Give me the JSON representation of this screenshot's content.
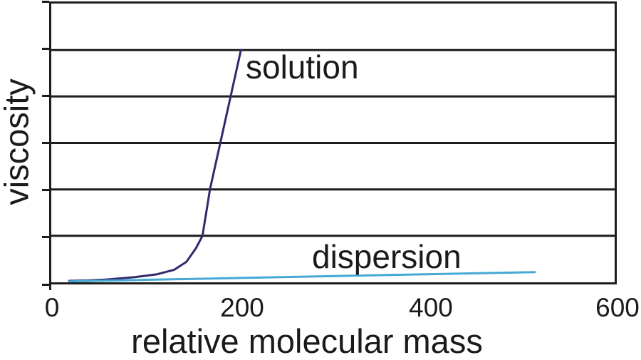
{
  "chart_data": {
    "type": "line",
    "title": "",
    "xlabel": "relative molecular mass",
    "ylabel": "viscosity",
    "xlim": [
      0,
      600
    ],
    "ylim": [
      0,
      6
    ],
    "x_ticks": [
      0,
      200,
      400,
      600
    ],
    "x_tick_labels": [
      "0",
      "200",
      "400",
      "600"
    ],
    "y_ticks_shown_as": "unlabeled gridline ticks",
    "y_gridlines": [
      1,
      2,
      3,
      4,
      5
    ],
    "grid": "horizontal-only",
    "grid_color": "#1d1d1b",
    "frame_color": "#1d1d1b",
    "text_color": "#1a1a1a",
    "background_color": "#ffffff",
    "legend": "inline-labels",
    "series": [
      {
        "name": "solution",
        "color": "#312a6e",
        "x": [
          19,
          40,
          59,
          89,
          112,
          131,
          144,
          154,
          161,
          169,
          180,
          191,
          202
        ],
        "values": [
          0.03,
          0.04,
          0.06,
          0.11,
          0.17,
          0.27,
          0.44,
          0.73,
          1.0,
          2.0,
          3.0,
          4.0,
          5.0
        ]
      },
      {
        "name": "dispersion",
        "color": "#45a8d5",
        "x": [
          19,
          515
        ],
        "values": [
          0.02,
          0.22
        ]
      }
    ]
  }
}
